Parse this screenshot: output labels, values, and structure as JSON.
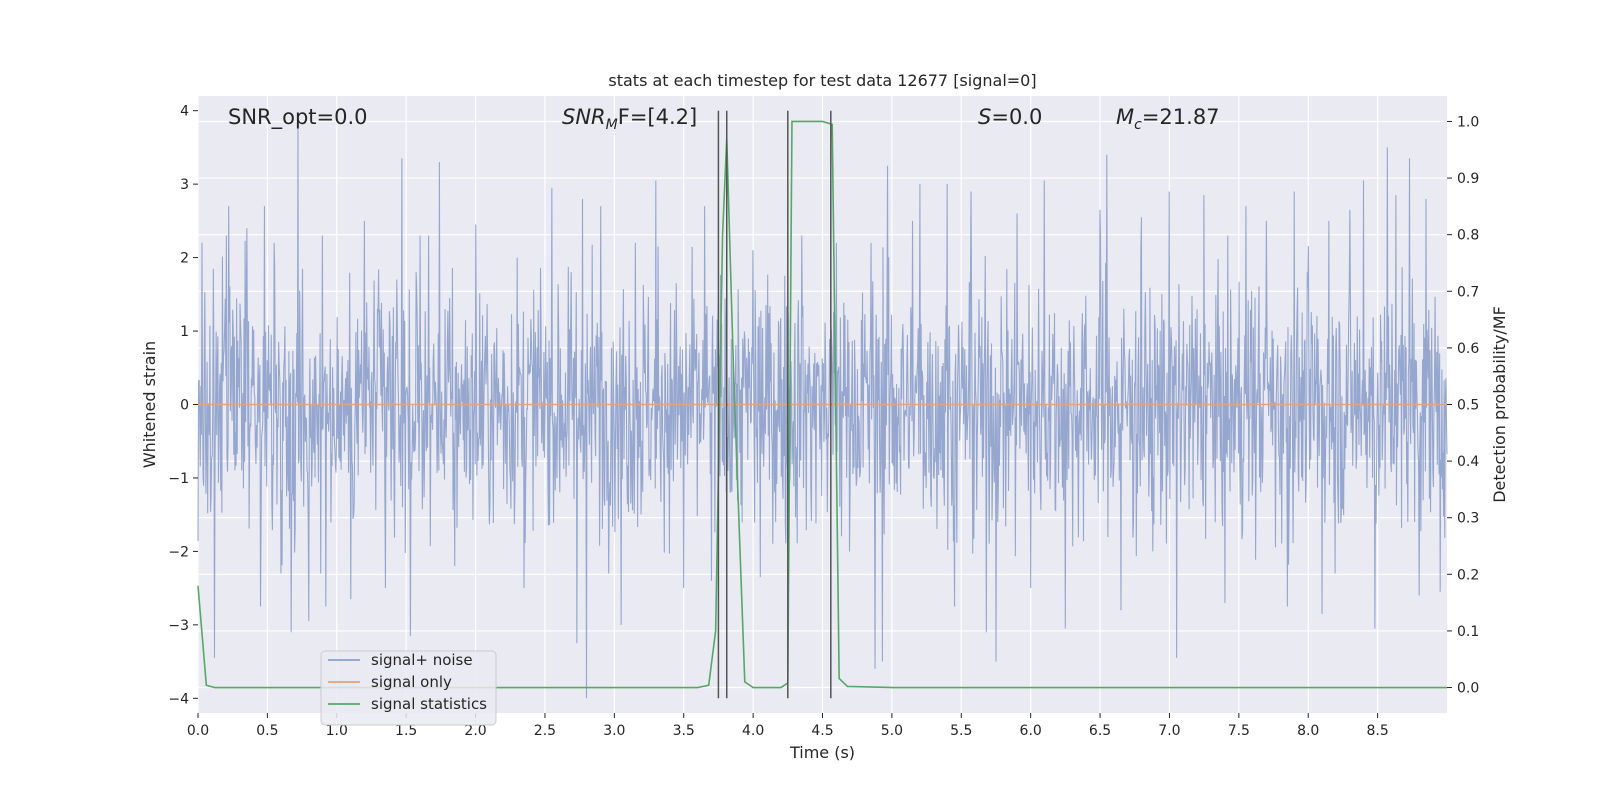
{
  "chart_data": {
    "type": "line",
    "title": "stats at each timestep for test data 12677 [signal=0]",
    "xlabel": "Time (s)",
    "ylabel": "Whitened strain",
    "y2label": "Detection probability/MF",
    "xlim": [
      0.0,
      9.0
    ],
    "ylim": [
      -4.2,
      4.2
    ],
    "y2lim": [
      -0.045,
      1.045
    ],
    "x_ticks": [
      0.0,
      0.5,
      1.0,
      1.5,
      2.0,
      2.5,
      3.0,
      3.5,
      4.0,
      4.5,
      5.0,
      5.5,
      6.0,
      6.5,
      7.0,
      7.5,
      8.0,
      8.5
    ],
    "x_tick_labels": [
      "0.0",
      "0.5",
      "1.0",
      "1.5",
      "2.0",
      "2.5",
      "3.0",
      "3.5",
      "4.0",
      "4.5",
      "5.0",
      "5.5",
      "6.0",
      "6.5",
      "7.0",
      "7.5",
      "8.0",
      "8.5"
    ],
    "y_ticks": [
      -4,
      -3,
      -2,
      -1,
      0,
      1,
      2,
      3,
      4
    ],
    "y_tick_labels": [
      "−4",
      "−3",
      "−2",
      "−1",
      "0",
      "1",
      "2",
      "3",
      "4"
    ],
    "y2_ticks": [
      0.0,
      0.1,
      0.2,
      0.3,
      0.4,
      0.5,
      0.6,
      0.7,
      0.8,
      0.9,
      1.0
    ],
    "y2_tick_labels": [
      "0.0",
      "0.1",
      "0.2",
      "0.3",
      "0.4",
      "0.5",
      "0.6",
      "0.7",
      "0.8",
      "0.9",
      "1.0"
    ],
    "grid": true,
    "legend_position": "bottom-left",
    "annotations": {
      "snr_opt": "SNR_opt=0.0",
      "snr_mf_main": "SNR",
      "snr_mf_sub": "M",
      "snr_mf_rest": "F=[4.2]",
      "s_main": "S",
      "s_rest": "=0.0",
      "mc_main": "M",
      "mc_sub": "c",
      "mc_rest": "=21.87"
    },
    "series": [
      {
        "name": "signal+ noise",
        "color": "#8da0cb",
        "note_style": "dense noise trace",
        "sample_count": 2200,
        "core_std": 0.85,
        "spikes": [
          [
            0.03,
            2.2
          ],
          [
            0.12,
            -3.45
          ],
          [
            0.22,
            2.7
          ],
          [
            0.35,
            2.4
          ],
          [
            0.45,
            -2.75
          ],
          [
            0.48,
            2.7
          ],
          [
            0.55,
            2.2
          ],
          [
            0.67,
            -3.1
          ],
          [
            0.72,
            3.8
          ],
          [
            0.8,
            -2.95
          ],
          [
            0.92,
            -2.75
          ],
          [
            1.1,
            -2.65
          ],
          [
            1.2,
            2.5
          ],
          [
            1.35,
            -2.5
          ],
          [
            1.47,
            3.35
          ],
          [
            1.53,
            -3.15
          ],
          [
            1.6,
            2.3
          ],
          [
            1.74,
            3.3
          ],
          [
            1.85,
            -2.2
          ],
          [
            2.0,
            2.45
          ],
          [
            2.3,
            2.0
          ],
          [
            2.35,
            -2.5
          ],
          [
            2.55,
            2.95
          ],
          [
            2.73,
            -3.25
          ],
          [
            2.77,
            2.8
          ],
          [
            2.8,
            -4.0
          ],
          [
            2.9,
            2.7
          ],
          [
            3.05,
            -3.0
          ],
          [
            3.15,
            2.2
          ],
          [
            3.3,
            3.05
          ],
          [
            3.5,
            -2.5
          ],
          [
            3.65,
            2.7
          ],
          [
            3.7,
            -2.4
          ],
          [
            4.0,
            2.1
          ],
          [
            4.05,
            -2.35
          ],
          [
            4.35,
            2.3
          ],
          [
            4.6,
            2.2
          ],
          [
            4.85,
            2.2
          ],
          [
            4.88,
            -3.6
          ],
          [
            4.93,
            -3.5
          ],
          [
            4.97,
            3.25
          ],
          [
            5.15,
            2.5
          ],
          [
            5.2,
            3.0
          ],
          [
            5.4,
            3.0
          ],
          [
            5.45,
            -2.75
          ],
          [
            5.57,
            2.9
          ],
          [
            5.68,
            -3.1
          ],
          [
            5.75,
            -3.5
          ],
          [
            5.9,
            2.6
          ],
          [
            6.0,
            -2.5
          ],
          [
            6.1,
            3.05
          ],
          [
            6.25,
            -3.05
          ],
          [
            6.5,
            2.65
          ],
          [
            6.55,
            3.4
          ],
          [
            6.65,
            -2.8
          ],
          [
            6.8,
            2.55
          ],
          [
            6.88,
            -2.0
          ],
          [
            7.0,
            2.9
          ],
          [
            7.05,
            -3.45
          ],
          [
            7.25,
            2.85
          ],
          [
            7.4,
            -2.7
          ],
          [
            7.55,
            2.7
          ],
          [
            7.7,
            2.5
          ],
          [
            7.85,
            -2.75
          ],
          [
            7.9,
            2.9
          ],
          [
            8.1,
            -2.85
          ],
          [
            8.15,
            2.5
          ],
          [
            8.3,
            2.65
          ],
          [
            8.4,
            3.05
          ],
          [
            8.48,
            -3.05
          ],
          [
            8.57,
            3.5
          ],
          [
            8.63,
            2.85
          ],
          [
            8.73,
            3.35
          ],
          [
            8.8,
            -2.6
          ],
          [
            8.85,
            2.8
          ],
          [
            8.95,
            -2.55
          ]
        ]
      },
      {
        "name": "signal only",
        "color": "#e5a27c",
        "x": [
          0.0,
          9.0
        ],
        "y": [
          0.0,
          0.0
        ]
      },
      {
        "name": "signal statistics",
        "color": "#55a868",
        "axis": "right",
        "x": [
          0.0,
          0.06,
          0.12,
          1.0,
          2.0,
          3.0,
          3.6,
          3.68,
          3.73,
          3.78,
          3.81,
          3.86,
          3.94,
          4.0,
          4.2,
          4.25,
          4.28,
          4.31,
          4.5,
          4.57,
          4.62,
          4.68,
          5.0,
          6.0,
          7.0,
          8.0,
          9.0
        ],
        "y": [
          0.18,
          0.004,
          0.0,
          0.0,
          0.0,
          0.0,
          0.0,
          0.004,
          0.1,
          0.8,
          0.97,
          0.55,
          0.01,
          0.0,
          0.0,
          0.008,
          1.0,
          1.0,
          1.0,
          0.995,
          0.016,
          0.002,
          0.0,
          0.0,
          0.0,
          0.0,
          0.0
        ]
      }
    ],
    "vertical_markers": {
      "color": "#555555",
      "x": [
        3.75,
        3.81,
        4.25,
        4.56
      ],
      "y_top": 4.0,
      "y_bottom": -4.0
    }
  }
}
